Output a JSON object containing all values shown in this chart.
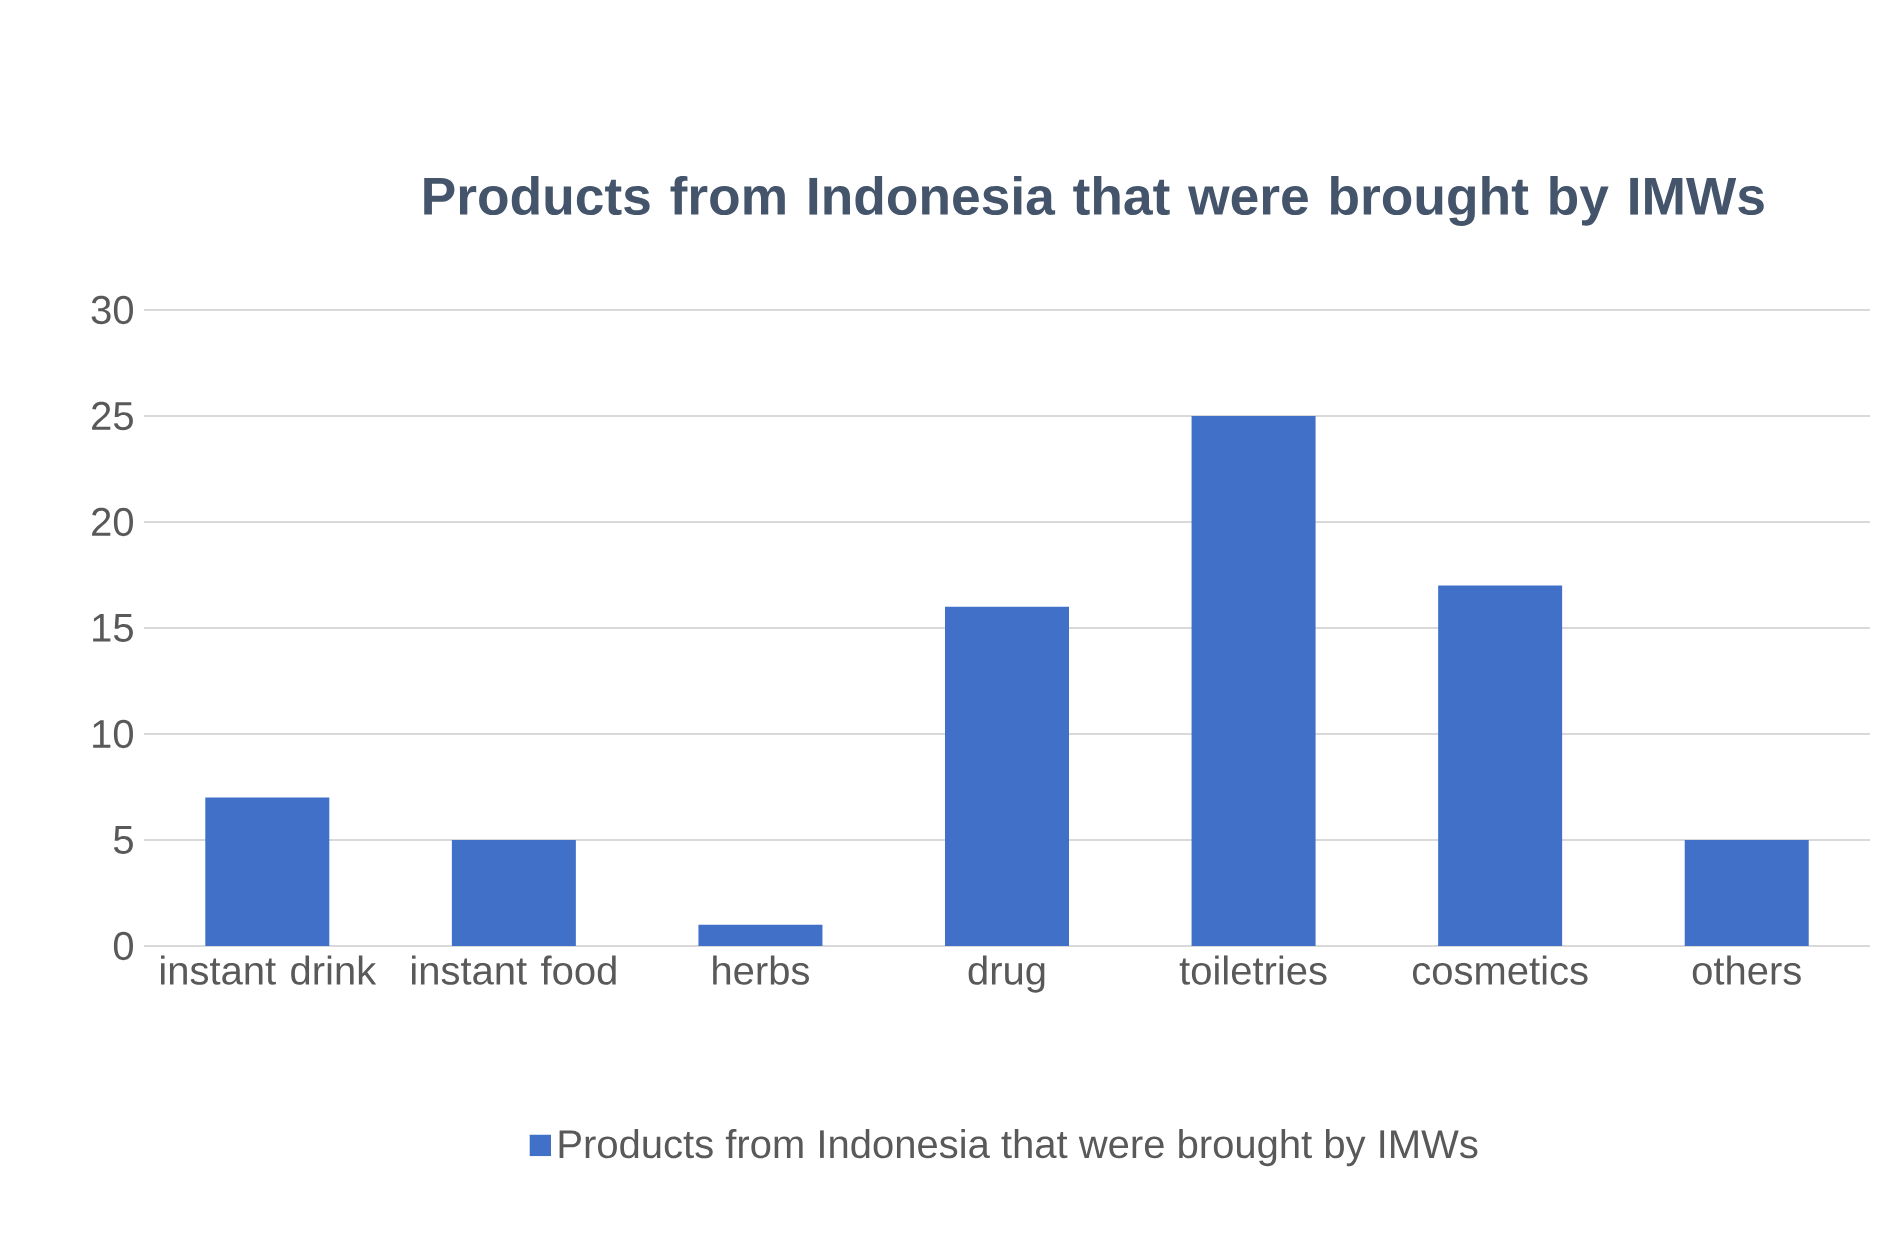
{
  "chart_data": {
    "type": "bar",
    "title": "Products from Indonesia that were brought by IMWs",
    "categories": [
      "instant drink",
      "instant food",
      "herbs",
      "drug",
      "toiletries",
      "cosmetics",
      "others"
    ],
    "series": [
      {
        "name": "Products from Indonesia that were brought by IMWs",
        "color": "#4170c8",
        "values": [
          7,
          5,
          1,
          16,
          25,
          17,
          5
        ]
      }
    ],
    "ylim": [
      0,
      30
    ],
    "yticks": [
      0,
      5,
      10,
      15,
      20,
      25,
      30
    ],
    "grid": "y",
    "legend": "bottom"
  }
}
